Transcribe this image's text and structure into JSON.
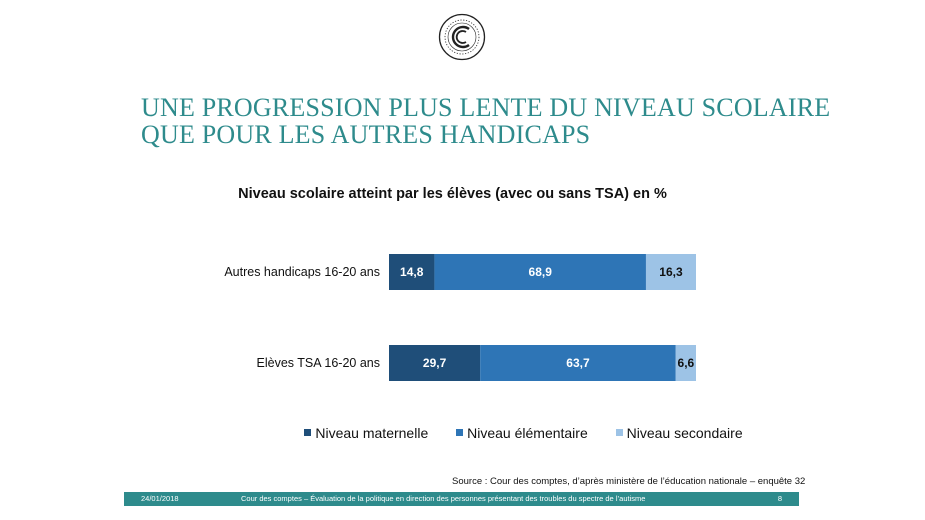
{
  "title": "UNE PROGRESSION PLUS LENTE DU NIVEAU SCOLAIRE QUE POUR LES AUTRES HANDICAPS",
  "chart_data": {
    "type": "bar",
    "orientation": "horizontal",
    "stacked": true,
    "title": "Niveau scolaire atteint par les élèves (avec ou sans TSA) en %",
    "categories": [
      "Autres handicaps 16-20 ans",
      "Elèves TSA 16-20 ans"
    ],
    "value_labels": [
      [
        "14,8",
        "68,9",
        "16,3"
      ],
      [
        "29,7",
        "63,7",
        "6,6"
      ]
    ],
    "series": [
      {
        "name": "Niveau maternelle",
        "values": [
          14.8,
          29.7
        ],
        "color": "#1f4e79",
        "label_color": "#ffffff"
      },
      {
        "name": "Niveau élémentaire",
        "values": [
          68.9,
          63.7
        ],
        "color": "#2e75b6",
        "label_color": "#ffffff"
      },
      {
        "name": "Niveau secondaire",
        "values": [
          16.3,
          6.6
        ],
        "color": "#9dc3e6",
        "label_color": "#111111"
      }
    ],
    "xlim": [
      0,
      100
    ],
    "legend_position": "bottom",
    "grid": false
  },
  "source": "Source : Cour des comptes, d’après ministère de l’éducation nationale – enquête 32",
  "footer": {
    "date": "24/01/2018",
    "text": "Cour des comptes – Évaluation de la politique en direction des personnes présentant des troubles du spectre de l’autisme",
    "page": "8"
  },
  "colors": {
    "accent": "#2e8b8c"
  }
}
